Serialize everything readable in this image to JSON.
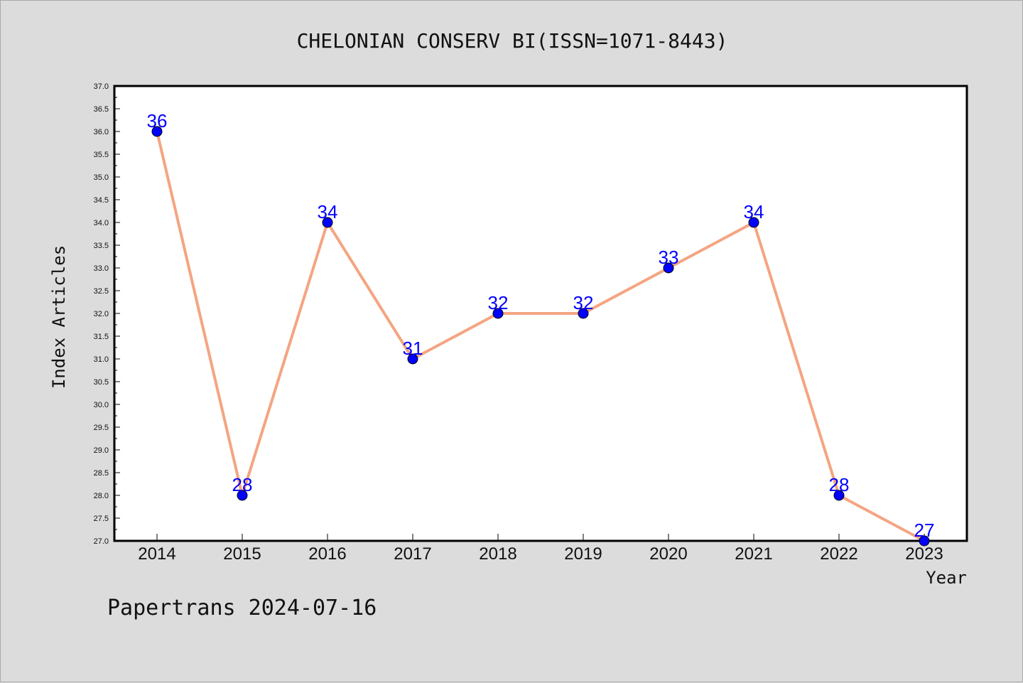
{
  "chart_data": {
    "type": "line",
    "title": "CHELONIAN CONSERV BI(ISSN=1071-8443)",
    "xlabel": "Year",
    "ylabel": "Index Articles",
    "categories": [
      "2014",
      "2015",
      "2016",
      "2017",
      "2018",
      "2019",
      "2020",
      "2021",
      "2022",
      "2023"
    ],
    "values": [
      36,
      28,
      34,
      31,
      32,
      32,
      33,
      34,
      28,
      27
    ],
    "ylim": [
      27.0,
      37.0
    ],
    "ytick_step": 0.5,
    "grid": false,
    "line_color": "#f4a582",
    "marker_color": "#0000ff",
    "label_color": "#0000ff",
    "footer": "Papertrans 2024-07-16"
  }
}
